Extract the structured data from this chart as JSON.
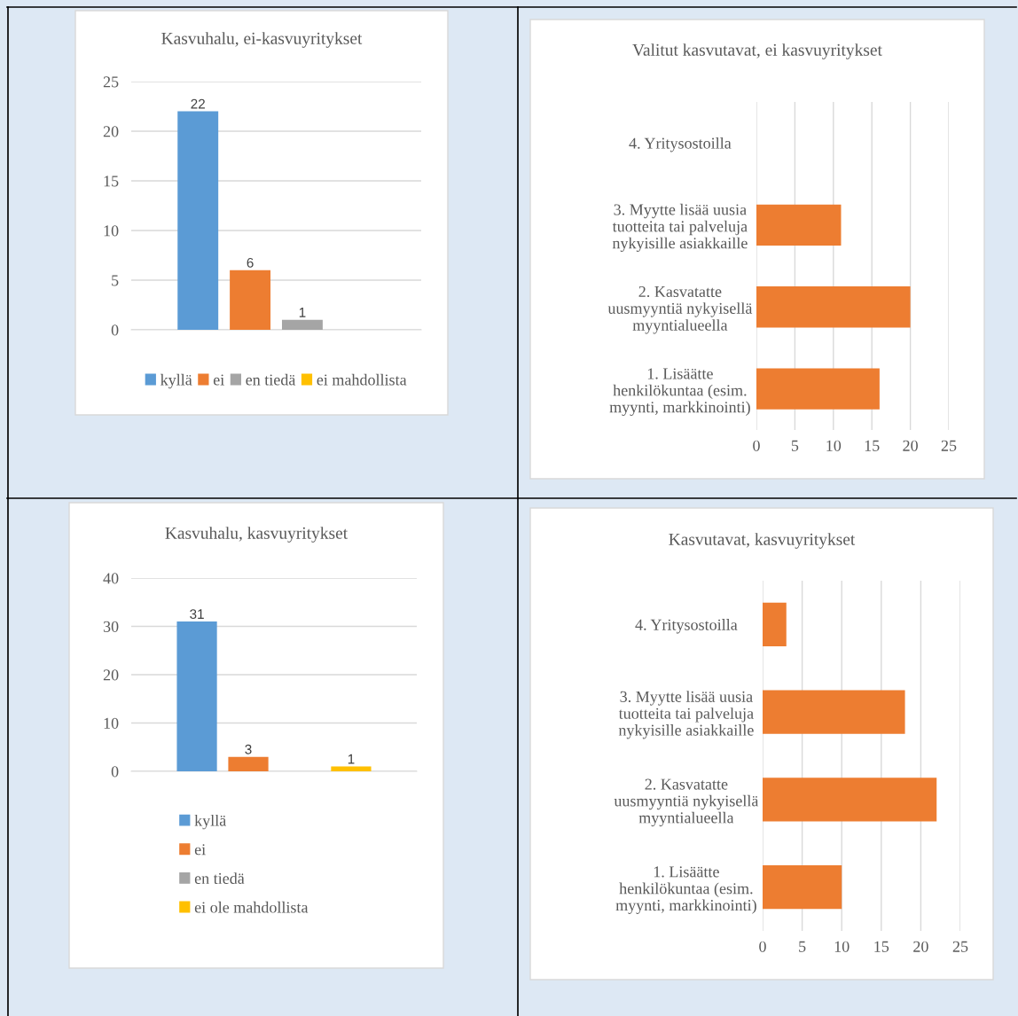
{
  "chart_data": [
    {
      "type": "bar",
      "title": "Kasvuhalu, ei-kasvuyritykset",
      "categories": [
        null
      ],
      "ylim": [
        0,
        25
      ],
      "yticks": [
        0,
        5,
        10,
        15,
        20,
        25
      ],
      "grid": "y",
      "legend": "bottom",
      "data_labels": true,
      "series": [
        {
          "name": "kyllä",
          "color": "#5b9bd5",
          "values": [
            22
          ]
        },
        {
          "name": "ei",
          "color": "#ed7d31",
          "values": [
            6
          ]
        },
        {
          "name": "en tiedä",
          "color": "#a5a5a5",
          "values": [
            1
          ]
        },
        {
          "name": "ei mahdollista",
          "color": "#ffc000",
          "values": [
            null
          ]
        }
      ]
    },
    {
      "type": "bar",
      "orientation": "horizontal",
      "title": "Valitut kasvutavat, ei kasvuyritykset",
      "categories": [
        "4. Yritysostoilla",
        "3. Myytte lisää uusia\ntuotteita tai palveluja\nnykyisille asiakkaille",
        "2. Kasvatatte\nuusmyyntiä nykyisellä\nmyyntialueella",
        "1. Lisäätte\nhenkilökuntaa (esim.\nmyynti, markkinointi)"
      ],
      "xlim": [
        0,
        25
      ],
      "xticks": [
        0,
        5,
        10,
        15,
        20,
        25
      ],
      "grid": "x",
      "series": [
        {
          "color": "#ed7d31",
          "values": [
            0,
            11,
            20,
            16
          ]
        }
      ]
    },
    {
      "type": "bar",
      "title": "Kasvuhalu, kasvuyritykset",
      "categories": [
        null
      ],
      "ylim": [
        0,
        40
      ],
      "yticks": [
        0,
        10,
        20,
        30,
        40
      ],
      "grid": "y",
      "legend": "bottom left",
      "data_labels": true,
      "series": [
        {
          "name": "kyllä",
          "color": "#5b9bd5",
          "values": [
            31
          ]
        },
        {
          "name": "ei",
          "color": "#ed7d31",
          "values": [
            3
          ]
        },
        {
          "name": "en tiedä",
          "color": "#a5a5a5",
          "values": [
            null
          ]
        },
        {
          "name": "ei ole mahdollista",
          "color": "#ffc000",
          "values": [
            1
          ]
        }
      ]
    },
    {
      "type": "bar",
      "orientation": "horizontal",
      "title": "Kasvutavat, kasvuyritykset",
      "categories": [
        "4. Yritysostoilla",
        "3. Myytte lisää uusia\ntuotteita tai palveluja\nnykyisille asiakkaille",
        "2. Kasvatatte\nuusmyyntiä nykyisellä\nmyyntialueella",
        "1. Lisäätte\nhenkilökuntaa (esim.\nmyynti, markkinointi)"
      ],
      "xlim": [
        0,
        25
      ],
      "xticks": [
        0,
        5,
        10,
        15,
        20,
        25
      ],
      "grid": "x",
      "series": [
        {
          "color": "#ed7d31",
          "values": [
            3,
            18,
            22,
            10
          ]
        }
      ]
    }
  ]
}
